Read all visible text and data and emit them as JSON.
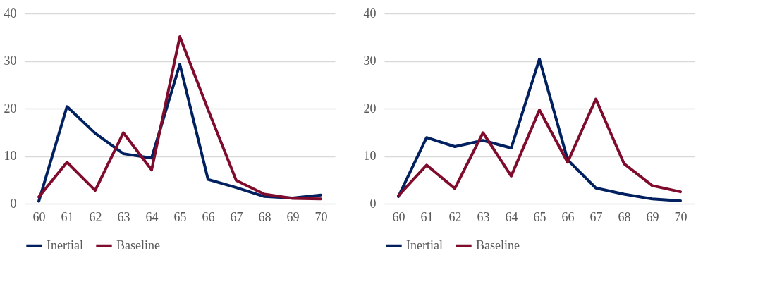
{
  "chart_data": [
    {
      "type": "line",
      "categories": [
        "60",
        "61",
        "62",
        "63",
        "64",
        "65",
        "66",
        "67",
        "68",
        "69",
        "70"
      ],
      "ylim": [
        0,
        40
      ],
      "yticks": [
        0,
        10,
        20,
        30,
        40
      ],
      "grid": "y",
      "legend": "bottom",
      "series": [
        {
          "name": "Inertial",
          "color": "#002060",
          "values": [
            0.5,
            20.4,
            14.8,
            10.5,
            9.6,
            29.3,
            5.1,
            3.4,
            1.5,
            1.2,
            1.8
          ]
        },
        {
          "name": "Baseline",
          "color": "#7f0c2c",
          "values": [
            1.4,
            8.7,
            2.8,
            14.9,
            7.1,
            35.1,
            19.8,
            4.9,
            2.0,
            1.1,
            1.0
          ]
        }
      ]
    },
    {
      "type": "line",
      "categories": [
        "60",
        "61",
        "62",
        "63",
        "64",
        "65",
        "66",
        "67",
        "68",
        "69",
        "70"
      ],
      "ylim": [
        0,
        40
      ],
      "yticks": [
        0,
        10,
        20,
        30,
        40
      ],
      "grid": "y",
      "legend": "bottom",
      "series": [
        {
          "name": "Inertial",
          "color": "#002060",
          "values": [
            1.5,
            13.9,
            12.0,
            13.3,
            11.7,
            30.4,
            9.2,
            3.3,
            2.0,
            1.0,
            0.6
          ]
        },
        {
          "name": "Baseline",
          "color": "#7f0c2c",
          "values": [
            1.7,
            8.1,
            3.2,
            14.9,
            5.8,
            19.7,
            8.7,
            22.0,
            8.4,
            3.8,
            2.5
          ]
        }
      ]
    }
  ]
}
